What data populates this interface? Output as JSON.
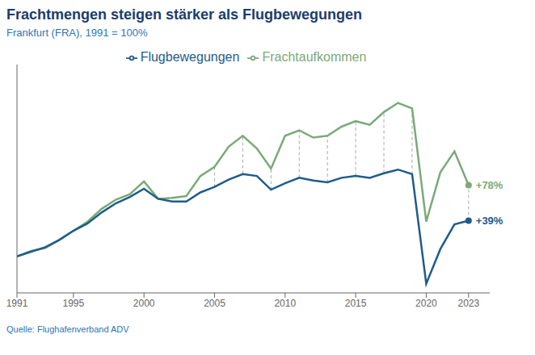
{
  "chart_data": {
    "type": "line",
    "title": "Frachtmengen steigen stärker als Flugbewegungen",
    "subtitle": "Frankfurt (FRA), 1991 = 100%",
    "source": "Quelle: Flughafenverband ADV",
    "x": [
      1991,
      1992,
      1993,
      1994,
      1995,
      1996,
      1997,
      1998,
      1999,
      2000,
      2001,
      2002,
      2003,
      2004,
      2005,
      2006,
      2007,
      2008,
      2009,
      2010,
      2011,
      2012,
      2013,
      2014,
      2015,
      2016,
      2017,
      2018,
      2019,
      2020,
      2021,
      2022,
      2023
    ],
    "series": [
      {
        "name": "Frachtaufkommen",
        "color": "#7aaa78",
        "values": [
          100,
          106,
          109,
          118,
          128,
          138,
          152,
          162,
          168,
          182,
          163,
          164,
          166,
          188,
          198,
          220,
          232,
          218,
          196,
          232,
          238,
          230,
          232,
          242,
          248,
          244,
          258,
          268,
          262,
          138,
          192,
          215,
          178
        ]
      },
      {
        "name": "Flugbewegungen",
        "color": "#1f5c8b",
        "values": [
          100,
          105,
          110,
          118,
          128,
          136,
          148,
          158,
          165,
          174,
          163,
          160,
          160,
          170,
          176,
          184,
          190,
          188,
          173,
          180,
          186,
          183,
          181,
          186,
          188,
          186,
          191,
          195,
          190,
          70,
          108,
          135,
          139
        ]
      }
    ],
    "dashed_x": [
      2005,
      2007,
      2009,
      2011,
      2013,
      2015,
      2017,
      2019,
      2023
    ],
    "annotations": [
      {
        "text": "+78%",
        "series": "Frachtaufkommen",
        "x": 2023
      },
      {
        "text": "+39%",
        "series": "Flugbewegungen",
        "x": 2023
      }
    ],
    "xlim": [
      1991,
      2024.5
    ],
    "xticks": [
      1991,
      1995,
      2000,
      2005,
      2010,
      2015,
      2020,
      2023
    ],
    "ylim": [
      60,
      310
    ],
    "tick_labels": "x",
    "grid": false,
    "legend": "top"
  }
}
